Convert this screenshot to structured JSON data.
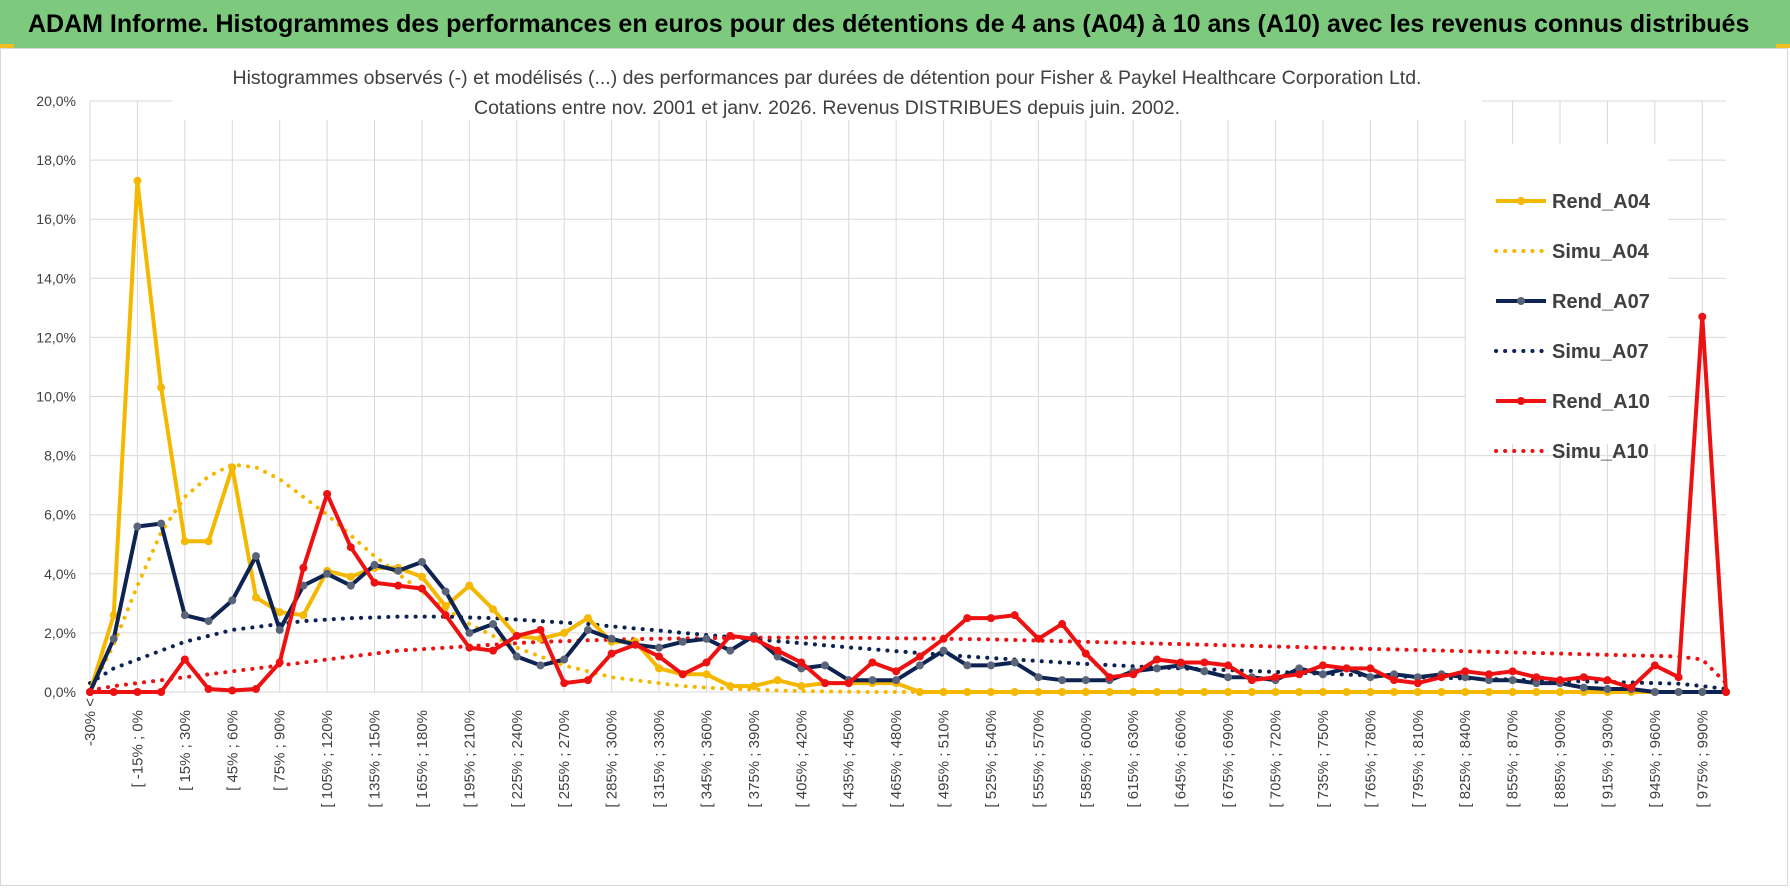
{
  "header": {
    "title": "ADAM Informe. Histogrammes des performances en euros pour des détentions de 4 ans (A04) à 10 ans (A10) avec les revenus connus distribués"
  },
  "colors": {
    "banner": "#7dc97d",
    "a04": "#f5b800",
    "a07": "#0d2352",
    "a10": "#ee1111",
    "grid": "#d9d9d9"
  },
  "chart_data": {
    "type": "line",
    "title": "Histogrammes observés (-) et modélisés (...) des performances par durées de détention pour Fisher & Paykel Healthcare Corporation Ltd.",
    "subtitle": "Cotations entre nov. 2001 et janv. 2026. Revenus DISTRIBUES depuis juin. 2002.",
    "xlabel": "",
    "ylabel": "",
    "ylim": [
      0,
      20
    ],
    "y_ticks": [
      "0,0%",
      "2,0%",
      "4,0%",
      "6,0%",
      "8,0%",
      "10,0%",
      "12,0%",
      "14,0%",
      "16,0%",
      "18,0%",
      "20,0%"
    ],
    "grid": true,
    "legend_position": "right",
    "x_tick_labels": [
      "-30% <",
      "[ -15% ; 0%",
      "[ 15% ; 30%",
      "[ 45% ; 60%",
      "[ 75% ; 90%",
      "[ 105% ; 120%",
      "[ 135% ; 150%",
      "[ 165% ; 180%",
      "[ 195% ; 210%",
      "[ 225% ; 240%",
      "[ 255% ; 270%",
      "[ 285% ; 300%",
      "[ 315% ; 330%",
      "[ 345% ; 360%",
      "[ 375% ; 390%",
      "[ 405% ; 420%",
      "[ 435% ; 450%",
      "[ 465% ; 480%",
      "[ 495% ; 510%",
      "[ 525% ; 540%",
      "[ 555% ; 570%",
      "[ 585% ; 600%",
      "[ 615% ; 630%",
      "[ 645% ; 660%",
      "[ 675% ; 690%",
      "[ 705% ; 720%",
      "[ 735% ; 750%",
      "[ 765% ; 780%",
      "[ 795% ; 810%",
      "[ 825% ; 840%",
      "[ 855% ; 870%",
      "[ 885% ; 900%",
      "[ 915% ; 930%",
      "[ 945% ; 960%",
      "[ 975% ; 990%"
    ],
    "n_categories": 70,
    "series": [
      {
        "name": "Rend_A04",
        "style": "solid",
        "color": "#f5b800",
        "values": [
          0,
          2.6,
          17.3,
          10.3,
          5.1,
          5.1,
          7.6,
          3.2,
          2.7,
          2.6,
          4.1,
          3.9,
          4.2,
          4.2,
          3.9,
          2.9,
          3.6,
          2.8,
          1.9,
          1.8,
          2.0,
          2.5,
          1.7,
          1.7,
          0.8,
          0.6,
          0.6,
          0.2,
          0.2,
          0.4,
          0.2,
          0.3,
          0.3,
          0.3,
          0.3,
          0,
          0,
          0,
          0,
          0,
          0,
          0,
          0,
          0,
          0,
          0,
          0,
          0,
          0,
          0,
          0,
          0,
          0,
          0,
          0,
          0,
          0,
          0,
          0,
          0,
          0,
          0,
          0,
          0,
          0,
          0,
          0,
          0,
          0,
          0
        ]
      },
      {
        "name": "Simu_A04",
        "style": "dotted",
        "color": "#f5b800",
        "values": [
          0,
          1.6,
          3.6,
          5.4,
          6.6,
          7.3,
          7.7,
          7.6,
          7.2,
          6.6,
          6.0,
          5.3,
          4.6,
          4.0,
          3.4,
          2.8,
          2.3,
          1.9,
          1.5,
          1.2,
          0.9,
          0.7,
          0.5,
          0.4,
          0.3,
          0.2,
          0.15,
          0.1,
          0.08,
          0.05,
          0.03,
          0.02,
          0.01,
          0,
          0,
          0,
          0,
          0,
          0,
          0,
          0,
          0,
          0,
          0,
          0,
          0,
          0,
          0,
          0,
          0,
          0,
          0,
          0,
          0,
          0,
          0,
          0,
          0,
          0,
          0,
          0,
          0,
          0,
          0,
          0,
          0,
          0,
          0,
          0,
          0
        ]
      },
      {
        "name": "Rend_A07",
        "style": "solid",
        "color": "#0d2352",
        "values": [
          0,
          1.8,
          5.6,
          5.7,
          2.6,
          2.4,
          3.1,
          4.6,
          2.1,
          3.6,
          4.0,
          3.6,
          4.3,
          4.1,
          4.4,
          3.4,
          2.0,
          2.3,
          1.2,
          0.9,
          1.1,
          2.1,
          1.8,
          1.6,
          1.5,
          1.7,
          1.8,
          1.4,
          1.9,
          1.2,
          0.8,
          0.9,
          0.4,
          0.4,
          0.4,
          0.9,
          1.4,
          0.9,
          0.9,
          1.0,
          0.5,
          0.4,
          0.4,
          0.4,
          0.7,
          0.8,
          0.9,
          0.7,
          0.5,
          0.5,
          0.4,
          0.8,
          0.6,
          0.8,
          0.5,
          0.6,
          0.5,
          0.6,
          0.5,
          0.4,
          0.4,
          0.3,
          0.3,
          0.15,
          0.1,
          0.1,
          0,
          0,
          0,
          0
        ]
      },
      {
        "name": "Simu_A07",
        "style": "dotted",
        "color": "#0d2352",
        "values": [
          0.3,
          0.8,
          1.1,
          1.4,
          1.7,
          1.9,
          2.1,
          2.2,
          2.3,
          2.4,
          2.45,
          2.5,
          2.52,
          2.55,
          2.55,
          2.55,
          2.52,
          2.5,
          2.45,
          2.4,
          2.35,
          2.3,
          2.22,
          2.15,
          2.08,
          2.0,
          1.93,
          1.86,
          1.79,
          1.72,
          1.65,
          1.58,
          1.51,
          1.45,
          1.38,
          1.32,
          1.26,
          1.2,
          1.15,
          1.1,
          1.05,
          1.0,
          0.95,
          0.91,
          0.87,
          0.83,
          0.8,
          0.77,
          0.74,
          0.71,
          0.68,
          0.65,
          0.62,
          0.59,
          0.56,
          0.53,
          0.5,
          0.48,
          0.46,
          0.44,
          0.42,
          0.4,
          0.38,
          0.36,
          0.34,
          0.32,
          0.3,
          0.28,
          0.2,
          0.1
        ]
      },
      {
        "name": "Rend_A10",
        "style": "solid",
        "color": "#ee1111",
        "values": [
          0,
          0,
          0,
          0,
          1.1,
          0.1,
          0.05,
          0.1,
          1.0,
          4.2,
          6.7,
          4.9,
          3.7,
          3.6,
          3.5,
          2.6,
          1.5,
          1.4,
          1.9,
          2.1,
          0.3,
          0.4,
          1.3,
          1.6,
          1.2,
          0.6,
          1.0,
          1.9,
          1.8,
          1.4,
          1.0,
          0.3,
          0.3,
          1.0,
          0.7,
          1.2,
          1.8,
          2.5,
          2.5,
          2.6,
          1.8,
          2.3,
          1.3,
          0.5,
          0.6,
          1.1,
          1.0,
          1.0,
          0.9,
          0.4,
          0.5,
          0.6,
          0.9,
          0.8,
          0.8,
          0.4,
          0.3,
          0.5,
          0.7,
          0.6,
          0.7,
          0.5,
          0.4,
          0.5,
          0.4,
          0.15,
          0.9,
          0.5,
          12.7,
          0
        ]
      },
      {
        "name": "Simu_A10",
        "style": "dotted",
        "color": "#ee1111",
        "values": [
          0.05,
          0.2,
          0.3,
          0.4,
          0.5,
          0.6,
          0.7,
          0.8,
          0.9,
          1.0,
          1.1,
          1.2,
          1.3,
          1.4,
          1.45,
          1.5,
          1.55,
          1.6,
          1.65,
          1.7,
          1.72,
          1.75,
          1.77,
          1.79,
          1.8,
          1.81,
          1.82,
          1.83,
          1.84,
          1.84,
          1.84,
          1.84,
          1.83,
          1.83,
          1.82,
          1.81,
          1.8,
          1.79,
          1.78,
          1.76,
          1.74,
          1.72,
          1.7,
          1.68,
          1.66,
          1.64,
          1.62,
          1.6,
          1.58,
          1.56,
          1.54,
          1.52,
          1.5,
          1.48,
          1.46,
          1.44,
          1.42,
          1.4,
          1.38,
          1.36,
          1.34,
          1.32,
          1.3,
          1.28,
          1.26,
          1.24,
          1.22,
          1.2,
          1.1,
          0.3
        ]
      }
    ]
  }
}
